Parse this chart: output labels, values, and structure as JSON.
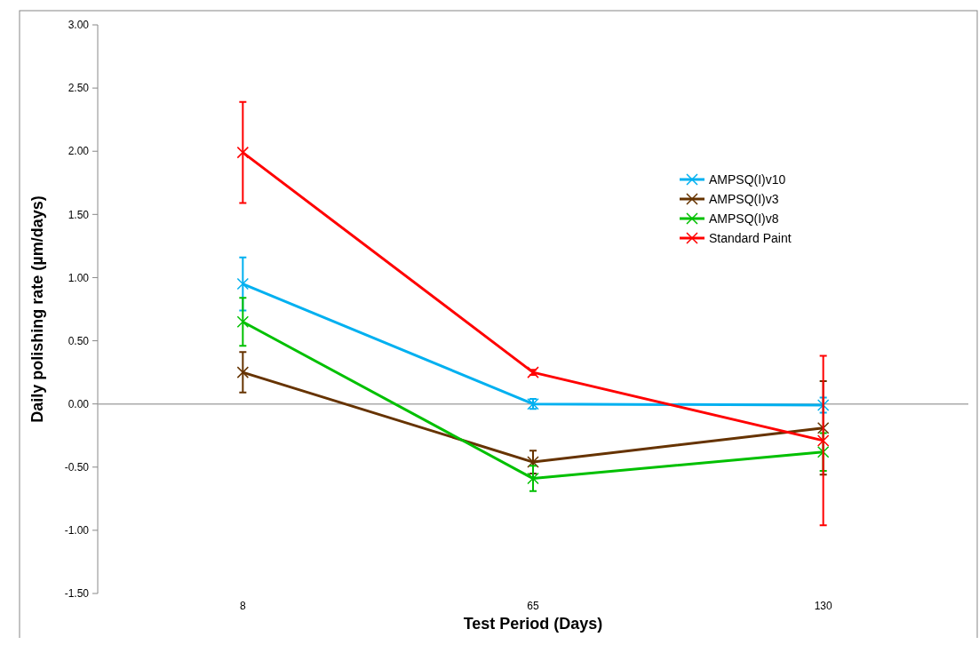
{
  "chart_data": {
    "type": "line",
    "xlabel": "Test Period (Days)",
    "ylabel": "Daily polishing rate (µm/days)",
    "categories": [
      "8",
      "65",
      "130"
    ],
    "series": [
      {
        "name": "AMPSQ(I)v10",
        "color": "#00b0f0",
        "values": [
          0.95,
          0.0,
          -0.01
        ],
        "errors": [
          0.21,
          0.04,
          0.06
        ]
      },
      {
        "name": "AMPSQ(I)v3",
        "color": "#663300",
        "values": [
          0.25,
          -0.46,
          -0.19
        ],
        "errors": [
          0.16,
          0.09,
          0.37
        ]
      },
      {
        "name": "AMPSQ(I)v8",
        "color": "#00c000",
        "values": [
          0.65,
          -0.59,
          -0.38
        ],
        "errors": [
          0.19,
          0.1,
          0.15
        ]
      },
      {
        "name": "Standard Paint",
        "color": "#ff0000",
        "values": [
          1.99,
          0.25,
          -0.29
        ],
        "errors": [
          0.4,
          0.02,
          0.67
        ]
      }
    ],
    "ylim": [
      -1.5,
      3.0
    ],
    "yticks": [
      {
        "value": -1.5,
        "label": "-1.50"
      },
      {
        "value": -1.0,
        "label": "-1.00"
      },
      {
        "value": -0.5,
        "label": "-0.50"
      },
      {
        "value": 0,
        "label": "0.00"
      },
      {
        "value": 0.5,
        "label": "0.50"
      },
      {
        "value": 1.0,
        "label": "1.00"
      },
      {
        "value": 1.5,
        "label": "1.50"
      },
      {
        "value": 2.0,
        "label": "2.00"
      },
      {
        "value": 2.5,
        "label": "2.50"
      },
      {
        "value": 3.0,
        "label": "3.00"
      }
    ],
    "ref_lines": [
      {
        "axis": "y",
        "value": 0,
        "color": "#aaaaaa"
      }
    ],
    "grid": false,
    "legend": "top right",
    "marker": "cross",
    "line_style": "solid"
  }
}
